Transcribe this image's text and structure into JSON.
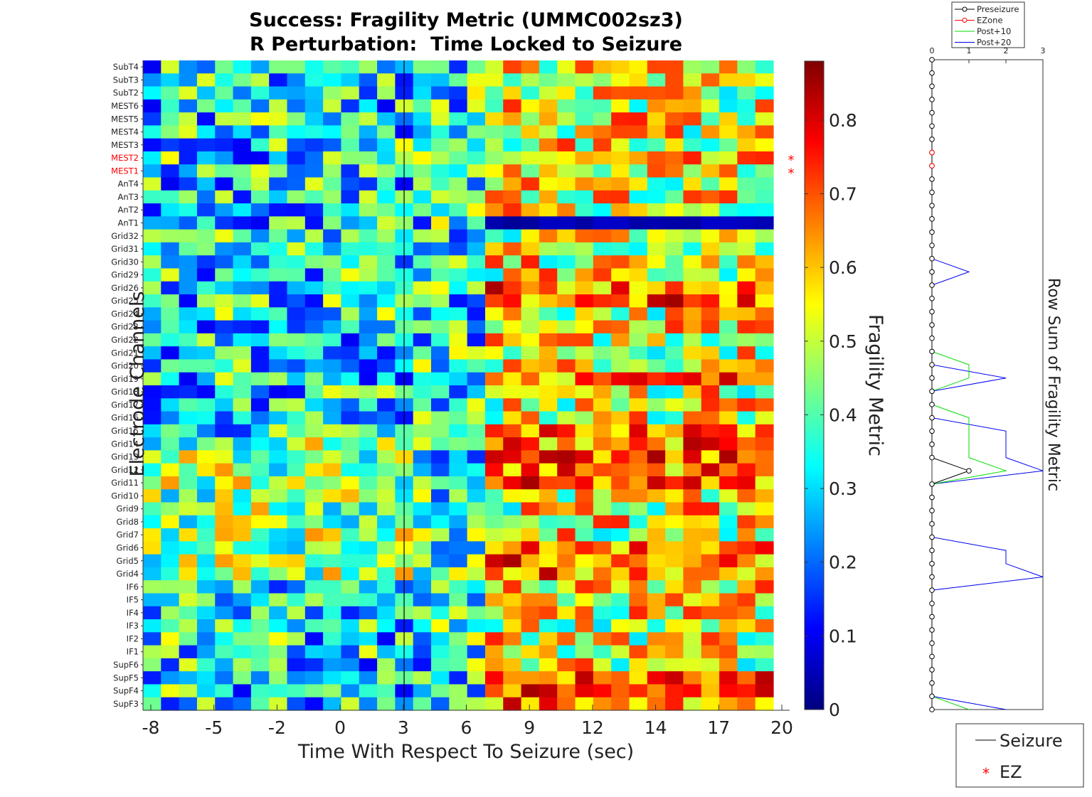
{
  "chart_data": [
    {
      "type": "heatmap",
      "title": "Success: Fragility Metric (UMMC002sz3)",
      "subtitle": "R Perturbation:  Time Locked to Seizure",
      "xlabel": "Time With Respect To Seizure (sec)",
      "ylabel": "Electrode Channels",
      "x_tick_labels": [
        "-8",
        "-5",
        "-2",
        "0",
        "3",
        "6",
        "9",
        "12",
        "14",
        "17",
        "20"
      ],
      "channels": [
        "SubT4",
        "SubT3",
        "SubT2",
        "MEST6",
        "MEST5",
        "MEST4",
        "MEST3",
        "MEST2",
        "MEST1",
        "AnT4",
        "AnT3",
        "AnT2",
        "AnT1",
        "Grid32",
        "Grid31",
        "Grid30",
        "Grid29",
        "Grid26",
        "Grid25",
        "Grid24",
        "Grid23",
        "Grid22",
        "Grid21",
        "Grid20",
        "Grid19",
        "Grid18",
        "Grid17",
        "Grid16",
        "Grid15",
        "Grid14",
        "Grid13",
        "Grid12",
        "Grid11",
        "Grid10",
        "Grid9",
        "Grid8",
        "Grid7",
        "Grid6",
        "Grid5",
        "Grid4",
        "IF6",
        "IF5",
        "IF4",
        "IF3",
        "IF2",
        "IF1",
        "SupF6",
        "SupF5",
        "SupF4",
        "SupF3"
      ],
      "ez_channels": [
        "MEST2",
        "MEST1"
      ],
      "ez_color": "#ff0000",
      "n_time_windows": 35,
      "seizure_onset_window": 14.5,
      "post_onset_window": 19,
      "colormap": "jet",
      "colorbar": {
        "label": "Fragility Metric",
        "range": [
          0,
          0.88
        ],
        "tick_labels": [
          "0",
          "0.1",
          "0.2",
          "0.3",
          "0.4",
          "0.5",
          "0.6",
          "0.7",
          "0.8"
        ]
      },
      "low_value_row_after_onset": "AnT1",
      "high_value_rows_after_onset": [
        "Grid26",
        "Grid25",
        "Grid19",
        "Grid15",
        "Grid14",
        "Grid13",
        "Grid12",
        "Grid11",
        "Grid6",
        "Grid5",
        "Grid4",
        "SupF5",
        "SupF4",
        "SupF3"
      ]
    },
    {
      "type": "line",
      "ylabel": "Row Sum of Fragility Metric",
      "x_tick_labels": [
        "0",
        "1",
        "2",
        "3"
      ],
      "xlim": [
        0,
        3
      ],
      "series": [
        {
          "name": "Preseizure",
          "color": "#000000",
          "marker": "circle",
          "values": [
            0,
            0,
            0,
            0,
            0,
            0,
            0,
            0,
            0,
            0,
            0,
            0,
            0,
            0,
            0,
            0,
            0,
            0,
            0,
            0,
            0,
            0,
            0,
            0,
            0,
            0,
            0,
            0,
            0,
            0,
            0,
            1,
            0,
            0,
            0,
            0,
            0,
            0,
            0,
            0,
            0,
            0,
            0,
            0,
            0,
            0,
            0,
            0,
            0,
            0
          ]
        },
        {
          "name": "EZone",
          "color": "#ff0000",
          "marker": "circle",
          "channels": [
            "MEST2",
            "MEST1"
          ],
          "values": [
            0,
            0
          ]
        },
        {
          "name": "Post+10",
          "color": "#00dd00",
          "values": [
            0,
            0,
            0,
            0,
            0,
            0,
            0,
            0,
            0,
            0,
            0,
            0,
            0,
            0,
            0,
            0,
            0,
            0,
            0,
            0,
            0,
            0,
            0,
            1,
            1,
            0,
            0,
            1,
            1,
            1,
            1,
            2,
            0,
            0,
            0,
            0,
            0,
            0,
            0,
            0,
            0,
            0,
            0,
            0,
            0,
            0,
            0,
            0,
            0,
            1
          ]
        },
        {
          "name": "Post+20",
          "color": "#0000ee",
          "values": [
            0,
            0,
            0,
            0,
            0,
            0,
            0,
            0,
            0,
            0,
            0,
            0,
            0,
            0,
            0,
            0,
            1,
            0,
            0,
            0,
            0,
            0,
            0,
            0,
            2,
            0,
            0,
            0,
            2,
            2,
            2,
            3,
            0,
            0,
            0,
            0,
            0,
            2,
            2,
            3,
            0,
            0,
            0,
            0,
            0,
            0,
            0,
            0,
            0,
            2
          ]
        }
      ]
    }
  ],
  "legend": {
    "entries": [
      {
        "name": "Seizure",
        "color": "#000000",
        "symbol": "line"
      },
      {
        "name": "EZ",
        "color": "#ff0000",
        "symbol": "asterisk"
      }
    ]
  }
}
